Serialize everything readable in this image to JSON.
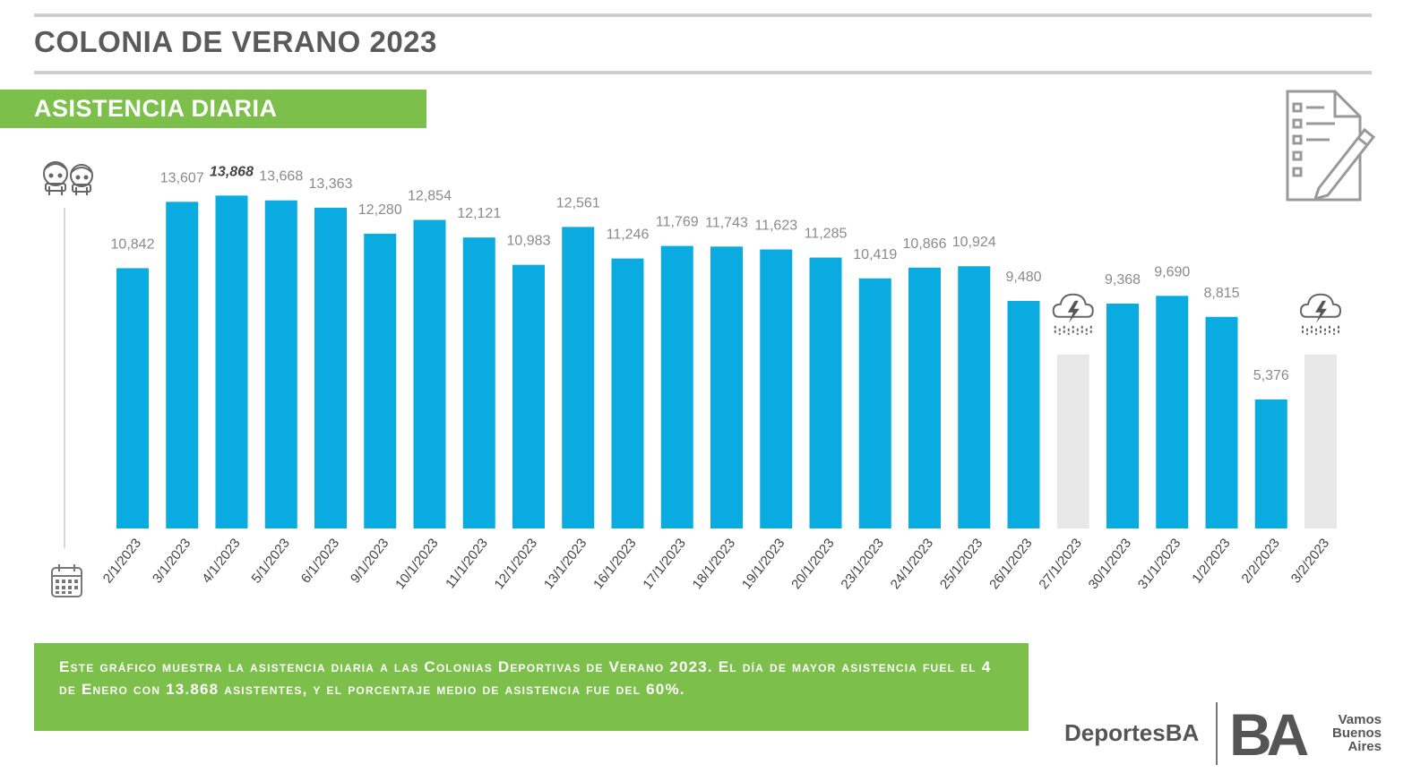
{
  "header": {
    "title": "COLONIA DE VERANO 2023",
    "section_label": "ASISTENCIA DIARIA"
  },
  "icons": {
    "top_left": "kids-icon",
    "bottom_left": "calendar-icon",
    "top_right": "checklist-pencil-icon",
    "storm": "storm-cloud-icon"
  },
  "colors": {
    "bar": "#0aabe0",
    "bar_rain": "#e8e8e8",
    "accent_green": "#7cbf4a",
    "label": "#8a8a8a"
  },
  "chart_data": {
    "type": "bar",
    "categories": [
      "2/1/2023",
      "3/1/2023",
      "4/1/2023",
      "5/1/2023",
      "6/1/2023",
      "9/1/2023",
      "10/1/2023",
      "11/1/2023",
      "12/1/2023",
      "13/1/2023",
      "16/1/2023",
      "17/1/2023",
      "18/1/2023",
      "19/1/2023",
      "20/1/2023",
      "23/1/2023",
      "24/1/2023",
      "25/1/2023",
      "26/1/2023",
      "27/1/2023",
      "30/1/2023",
      "31/1/2023",
      "1/2/2023",
      "2/2/2023",
      "3/2/2023"
    ],
    "values": [
      10842,
      13607,
      13868,
      13668,
      13363,
      12280,
      12854,
      12121,
      10983,
      12561,
      11246,
      11769,
      11743,
      11623,
      11285,
      10419,
      10866,
      10924,
      9480,
      null,
      9368,
      9690,
      8815,
      5376,
      null
    ],
    "value_labels": [
      "10,842",
      "13,607",
      "13,868",
      "13,668",
      "13,363",
      "12,280",
      "12,854",
      "12,121",
      "10,983",
      "12,561",
      "11,246",
      "11,769",
      "11,743",
      "11,623",
      "11,285",
      "10,419",
      "10,866",
      "10,924",
      "9,480",
      "",
      "9,368",
      "9,690",
      "8,815",
      "5,376",
      ""
    ],
    "highlight_index": 2,
    "rain_days": [
      "27/1/2023",
      "3/2/2023"
    ],
    "title": "",
    "xlabel": "",
    "ylabel": "",
    "ylim": [
      0,
      14500
    ],
    "grid": false,
    "legend": "none"
  },
  "footer": {
    "note": "Este gráfico muestra la asistencia diaria a las Colonias Deportivas de Verano 2023. El día de mayor asistencia fuel el 4 de Enero con 13.868 asistentes, y el porcentaje medio de asistencia fue del 60%."
  },
  "branding": {
    "deportes": "DeportesBA",
    "ba_logo": "BA",
    "slogan": [
      "Vamos",
      "Buenos",
      "Aires"
    ]
  }
}
